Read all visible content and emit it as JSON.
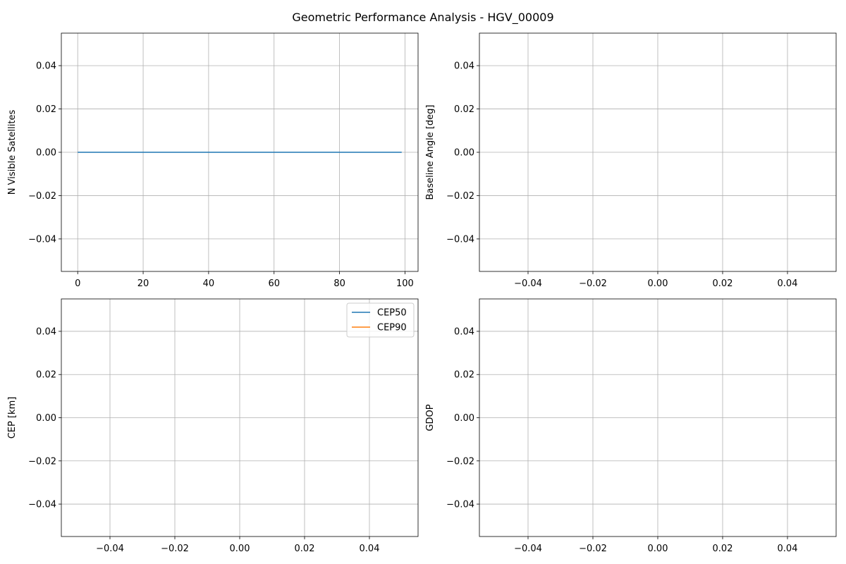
{
  "figure": {
    "title": "Geometric Performance Analysis - HGV_00009"
  },
  "chart_data": [
    {
      "id": "satellites",
      "type": "line",
      "title": "",
      "xlabel": "",
      "ylabel": "N Visible Satellites",
      "xlim": [
        -5,
        104
      ],
      "ylim": [
        -0.055,
        0.055
      ],
      "xticks": [
        0,
        20,
        40,
        60,
        80,
        100
      ],
      "yticks": [
        -0.04,
        -0.02,
        0.0,
        0.02,
        0.04
      ],
      "xtick_labels": [
        "0",
        "20",
        "40",
        "60",
        "80",
        "100"
      ],
      "ytick_labels": [
        "−0.04",
        "−0.02",
        "0.00",
        "0.02",
        "0.04"
      ],
      "grid": true,
      "legend": null,
      "series": [
        {
          "x": [
            0,
            99
          ],
          "y": [
            0,
            0
          ],
          "color": "#1f77b4"
        }
      ]
    },
    {
      "id": "baseline",
      "type": "line",
      "title": "",
      "xlabel": "",
      "ylabel": "Baseline Angle [deg]",
      "xlim": [
        -0.055,
        0.055
      ],
      "ylim": [
        -0.055,
        0.055
      ],
      "xticks": [
        -0.04,
        -0.02,
        0.0,
        0.02,
        0.04
      ],
      "yticks": [
        -0.04,
        -0.02,
        0.0,
        0.02,
        0.04
      ],
      "xtick_labels": [
        "−0.04",
        "−0.02",
        "0.00",
        "0.02",
        "0.04"
      ],
      "ytick_labels": [
        "−0.04",
        "−0.02",
        "0.00",
        "0.02",
        "0.04"
      ],
      "grid": true,
      "legend": null,
      "series": []
    },
    {
      "id": "cep",
      "type": "line",
      "title": "",
      "xlabel": "",
      "ylabel": "CEP [km]",
      "xlim": [
        -0.055,
        0.055
      ],
      "ylim": [
        -0.055,
        0.055
      ],
      "xticks": [
        -0.04,
        -0.02,
        0.0,
        0.02,
        0.04
      ],
      "yticks": [
        -0.04,
        -0.02,
        0.0,
        0.02,
        0.04
      ],
      "xtick_labels": [
        "−0.04",
        "−0.02",
        "0.00",
        "0.02",
        "0.04"
      ],
      "ytick_labels": [
        "−0.04",
        "−0.02",
        "0.00",
        "0.02",
        "0.04"
      ],
      "grid": true,
      "legend": "top-right",
      "series": [
        {
          "name": "CEP50",
          "x": [],
          "y": [],
          "color": "#1f77b4"
        },
        {
          "name": "CEP90",
          "x": [],
          "y": [],
          "color": "#ff7f0e"
        }
      ]
    },
    {
      "id": "gdop",
      "type": "line",
      "title": "",
      "xlabel": "",
      "ylabel": "GDOP",
      "xlim": [
        -0.055,
        0.055
      ],
      "ylim": [
        -0.055,
        0.055
      ],
      "xticks": [
        -0.04,
        -0.02,
        0.0,
        0.02,
        0.04
      ],
      "yticks": [
        -0.04,
        -0.02,
        0.0,
        0.02,
        0.04
      ],
      "xtick_labels": [
        "−0.04",
        "−0.02",
        "0.00",
        "0.02",
        "0.04"
      ],
      "ytick_labels": [
        "−0.04",
        "−0.02",
        "0.00",
        "0.02",
        "0.04"
      ],
      "grid": true,
      "legend": null,
      "series": []
    }
  ]
}
